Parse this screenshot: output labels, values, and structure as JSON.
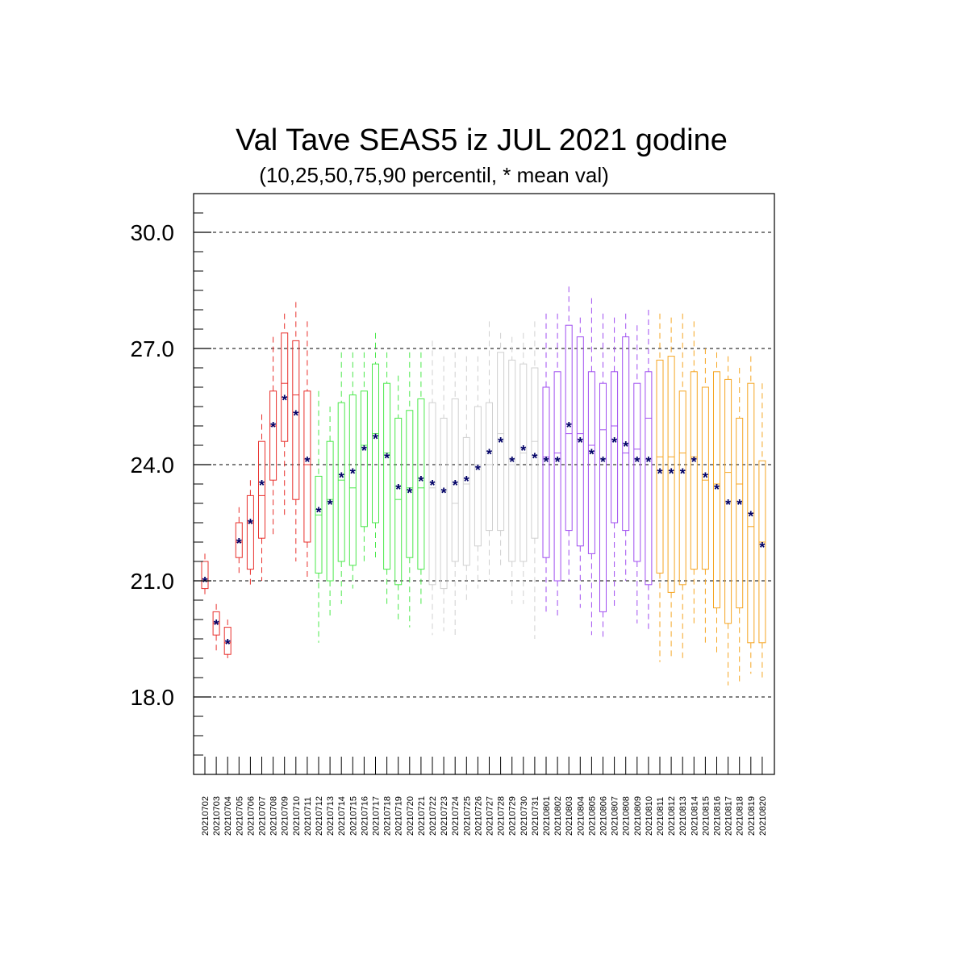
{
  "chart_data": {
    "type": "box",
    "title": "Val Tave SEAS5 iz JUL 2021 godine",
    "subtitle": "(10,25,50,75,90 percentil, * mean val)",
    "ylim": [
      16.0,
      31.0
    ],
    "yticks": [
      18.0,
      21.0,
      24.0,
      27.0,
      30.0
    ],
    "ytick_labels": [
      "18.0",
      "21.0",
      "24.0",
      "27.0",
      "30.0"
    ],
    "grid": "dashed horizontal at major ticks",
    "colors": {
      "month_jul_early": "#e8302c",
      "month_jul_mid": "#4be84b",
      "month_jul_late": "#d0d0d0",
      "month_aug_early": "#a04ef0",
      "month_aug_mid": "#f5a623",
      "mean_marker": "#000066"
    },
    "categories": [
      "20210702",
      "20210703",
      "20210704",
      "20210705",
      "20210706",
      "20210707",
      "20210708",
      "20210709",
      "20210710",
      "20210711",
      "20210712",
      "20210713",
      "20210714",
      "20210715",
      "20210716",
      "20210717",
      "20210718",
      "20210719",
      "20210720",
      "20210721",
      "20210722",
      "20210723",
      "20210724",
      "20210725",
      "20210726",
      "20210727",
      "20210728",
      "20210729",
      "20210730",
      "20210731",
      "20210801",
      "20210802",
      "20210803",
      "20210804",
      "20210805",
      "20210806",
      "20210807",
      "20210808",
      "20210809",
      "20210810",
      "20210811",
      "20210812",
      "20210813",
      "20210814",
      "20210815",
      "20210816",
      "20210817",
      "20210818",
      "20210819",
      "20210820"
    ],
    "boxes": [
      {
        "p10": 20.6,
        "p25": 20.8,
        "p50": 21.0,
        "p75": 21.5,
        "p90": 21.7,
        "mean": 21.0,
        "color": "month_jul_early"
      },
      {
        "p10": 19.2,
        "p25": 19.6,
        "p50": 19.9,
        "p75": 20.2,
        "p90": 20.4,
        "mean": 19.9,
        "color": "month_jul_early"
      },
      {
        "p10": 19.0,
        "p25": 19.1,
        "p50": 19.4,
        "p75": 19.8,
        "p90": 20.0,
        "mean": 19.4,
        "color": "month_jul_early"
      },
      {
        "p10": 21.2,
        "p25": 21.6,
        "p50": 22.0,
        "p75": 22.5,
        "p90": 22.9,
        "mean": 22.0,
        "color": "month_jul_early"
      },
      {
        "p10": 20.8,
        "p25": 21.3,
        "p50": 22.5,
        "p75": 23.2,
        "p90": 23.6,
        "mean": 22.5,
        "color": "month_jul_early"
      },
      {
        "p10": 21.0,
        "p25": 22.1,
        "p50": 23.2,
        "p75": 24.6,
        "p90": 25.3,
        "mean": 23.5,
        "color": "month_jul_early"
      },
      {
        "p10": 22.2,
        "p25": 23.6,
        "p50": 25.0,
        "p75": 25.9,
        "p90": 27.3,
        "mean": 25.0,
        "color": "month_jul_early"
      },
      {
        "p10": 22.6,
        "p25": 24.6,
        "p50": 26.1,
        "p75": 27.4,
        "p90": 27.9,
        "mean": 25.7,
        "color": "month_jul_early"
      },
      {
        "p10": 21.5,
        "p25": 23.1,
        "p50": 25.8,
        "p75": 27.2,
        "p90": 28.2,
        "mean": 25.3,
        "color": "month_jul_early"
      },
      {
        "p10": 21.0,
        "p25": 22.0,
        "p50": 24.0,
        "p75": 25.9,
        "p90": 27.7,
        "mean": 24.1,
        "color": "month_jul_early"
      },
      {
        "p10": 19.4,
        "p25": 21.2,
        "p50": 22.7,
        "p75": 23.7,
        "p90": 25.9,
        "mean": 22.8,
        "color": "month_jul_mid"
      },
      {
        "p10": 20.1,
        "p25": 21.0,
        "p50": 23.1,
        "p75": 24.6,
        "p90": 25.5,
        "mean": 23.0,
        "color": "month_jul_mid"
      },
      {
        "p10": 20.4,
        "p25": 21.5,
        "p50": 23.6,
        "p75": 25.6,
        "p90": 26.9,
        "mean": 23.7,
        "color": "month_jul_mid"
      },
      {
        "p10": 20.8,
        "p25": 21.4,
        "p50": 23.4,
        "p75": 25.8,
        "p90": 26.9,
        "mean": 23.8,
        "color": "month_jul_mid"
      },
      {
        "p10": 21.4,
        "p25": 22.4,
        "p50": 24.5,
        "p75": 25.9,
        "p90": 26.9,
        "mean": 24.4,
        "color": "month_jul_mid"
      },
      {
        "p10": 21.6,
        "p25": 22.5,
        "p50": 24.8,
        "p75": 26.6,
        "p90": 27.4,
        "mean": 24.7,
        "color": "month_jul_mid"
      },
      {
        "p10": 20.3,
        "p25": 21.3,
        "p50": 24.3,
        "p75": 26.1,
        "p90": 26.9,
        "mean": 24.2,
        "color": "month_jul_mid"
      },
      {
        "p10": 19.9,
        "p25": 20.9,
        "p50": 23.1,
        "p75": 25.2,
        "p90": 26.3,
        "mean": 23.4,
        "color": "month_jul_mid"
      },
      {
        "p10": 19.8,
        "p25": 21.6,
        "p50": 23.4,
        "p75": 25.4,
        "p90": 26.9,
        "mean": 23.3,
        "color": "month_jul_mid"
      },
      {
        "p10": 20.3,
        "p25": 21.3,
        "p50": 23.4,
        "p75": 25.7,
        "p90": 26.9,
        "mean": 23.6,
        "color": "month_jul_mid"
      },
      {
        "p10": 19.6,
        "p25": 20.9,
        "p50": 23.4,
        "p75": 25.6,
        "p90": 27.2,
        "mean": 23.5,
        "color": "month_jul_late"
      },
      {
        "p10": 19.7,
        "p25": 20.8,
        "p50": 23.3,
        "p75": 25.2,
        "p90": 26.8,
        "mean": 23.3,
        "color": "month_jul_late"
      },
      {
        "p10": 19.6,
        "p25": 21.5,
        "p50": 23.0,
        "p75": 25.7,
        "p90": 26.9,
        "mean": 23.5,
        "color": "month_jul_late"
      },
      {
        "p10": 20.5,
        "p25": 21.4,
        "p50": 23.5,
        "p75": 24.7,
        "p90": 26.8,
        "mean": 23.6,
        "color": "month_jul_late"
      },
      {
        "p10": 20.8,
        "p25": 21.9,
        "p50": 24.0,
        "p75": 25.5,
        "p90": 26.8,
        "mean": 23.9,
        "color": "month_jul_late"
      },
      {
        "p10": 21.0,
        "p25": 22.3,
        "p50": 24.0,
        "p75": 25.6,
        "p90": 27.7,
        "mean": 24.3,
        "color": "month_jul_late"
      },
      {
        "p10": 21.3,
        "p25": 22.3,
        "p50": 24.8,
        "p75": 26.9,
        "p90": 27.4,
        "mean": 24.6,
        "color": "month_jul_late"
      },
      {
        "p10": 20.4,
        "p25": 21.5,
        "p50": 24.0,
        "p75": 26.7,
        "p90": 27.3,
        "mean": 24.1,
        "color": "month_jul_late"
      },
      {
        "p10": 20.4,
        "p25": 21.5,
        "p50": 24.3,
        "p75": 26.6,
        "p90": 27.4,
        "mean": 24.4,
        "color": "month_jul_late"
      },
      {
        "p10": 19.5,
        "p25": 22.1,
        "p50": 24.6,
        "p75": 26.5,
        "p90": 27.7,
        "mean": 24.2,
        "color": "month_jul_late"
      },
      {
        "p10": 20.2,
        "p25": 21.6,
        "p50": 24.2,
        "p75": 26.0,
        "p90": 27.9,
        "mean": 24.1,
        "color": "month_aug_early"
      },
      {
        "p10": 20.1,
        "p25": 21.0,
        "p50": 24.3,
        "p75": 26.4,
        "p90": 27.9,
        "mean": 24.1,
        "color": "month_aug_early"
      },
      {
        "p10": 21.0,
        "p25": 22.3,
        "p50": 24.8,
        "p75": 27.6,
        "p90": 28.6,
        "mean": 25.0,
        "color": "month_aug_early"
      },
      {
        "p10": 20.3,
        "p25": 21.9,
        "p50": 24.8,
        "p75": 27.3,
        "p90": 27.8,
        "mean": 24.6,
        "color": "month_aug_early"
      },
      {
        "p10": 19.6,
        "p25": 21.7,
        "p50": 24.5,
        "p75": 26.4,
        "p90": 28.3,
        "mean": 24.3,
        "color": "month_aug_early"
      },
      {
        "p10": 19.5,
        "p25": 20.2,
        "p50": 24.9,
        "p75": 26.1,
        "p90": 27.9,
        "mean": 24.1,
        "color": "month_aug_early"
      },
      {
        "p10": 20.3,
        "p25": 22.5,
        "p50": 25.0,
        "p75": 26.4,
        "p90": 27.8,
        "mean": 24.6,
        "color": "month_aug_early"
      },
      {
        "p10": 21.0,
        "p25": 22.3,
        "p50": 24.3,
        "p75": 27.3,
        "p90": 27.9,
        "mean": 24.5,
        "color": "month_aug_early"
      },
      {
        "p10": 19.9,
        "p25": 21.5,
        "p50": 24.4,
        "p75": 26.1,
        "p90": 27.6,
        "mean": 24.1,
        "color": "month_aug_early"
      },
      {
        "p10": 19.7,
        "p25": 20.9,
        "p50": 25.2,
        "p75": 26.4,
        "p90": 28.0,
        "mean": 24.1,
        "color": "month_aug_early"
      },
      {
        "p10": 18.9,
        "p25": 21.2,
        "p50": 24.2,
        "p75": 26.7,
        "p90": 27.9,
        "mean": 23.8,
        "color": "month_aug_mid"
      },
      {
        "p10": 19.0,
        "p25": 20.7,
        "p50": 24.2,
        "p75": 26.8,
        "p90": 27.8,
        "mean": 23.8,
        "color": "month_aug_mid"
      },
      {
        "p10": 18.9,
        "p25": 20.9,
        "p50": 24.3,
        "p75": 25.9,
        "p90": 27.9,
        "mean": 23.8,
        "color": "month_aug_mid"
      },
      {
        "p10": 19.9,
        "p25": 21.3,
        "p50": 24.2,
        "p75": 26.4,
        "p90": 27.7,
        "mean": 24.1,
        "color": "month_aug_mid"
      },
      {
        "p10": 19.3,
        "p25": 21.3,
        "p50": 23.6,
        "p75": 26.0,
        "p90": 27.0,
        "mean": 23.7,
        "color": "month_aug_mid"
      },
      {
        "p10": 19.1,
        "p25": 20.3,
        "p50": 23.5,
        "p75": 26.4,
        "p90": 26.9,
        "mean": 23.4,
        "color": "month_aug_mid"
      },
      {
        "p10": 18.3,
        "p25": 19.9,
        "p50": 23.8,
        "p75": 26.2,
        "p90": 26.8,
        "mean": 23.0,
        "color": "month_aug_mid"
      },
      {
        "p10": 18.4,
        "p25": 20.3,
        "p50": 23.5,
        "p75": 25.2,
        "p90": 26.5,
        "mean": 23.0,
        "color": "month_aug_mid"
      },
      {
        "p10": 18.6,
        "p25": 19.4,
        "p50": 22.4,
        "p75": 26.1,
        "p90": 26.8,
        "mean": 22.7,
        "color": "month_aug_mid"
      },
      {
        "p10": 18.4,
        "p25": 19.4,
        "p50": 22.0,
        "p75": 24.1,
        "p90": 26.1,
        "mean": 21.9,
        "color": "month_aug_mid"
      }
    ]
  }
}
